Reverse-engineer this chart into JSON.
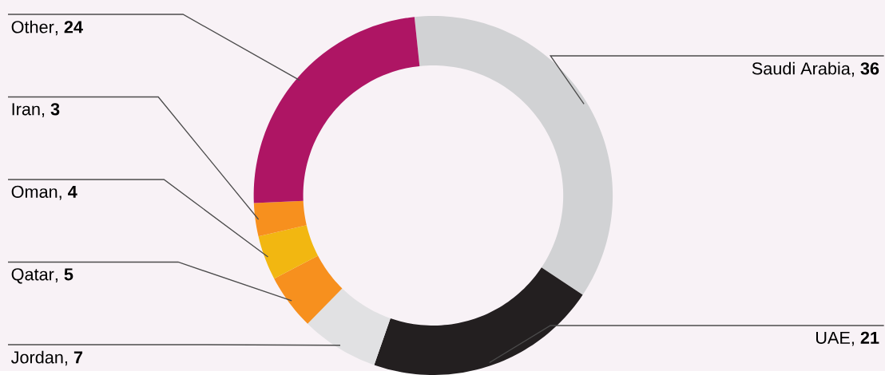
{
  "chart_data": {
    "type": "donut",
    "categories": [
      "Saudi Arabia",
      "UAE",
      "Jordan",
      "Qatar",
      "Oman",
      "Iran",
      "Other"
    ],
    "values": [
      36,
      21,
      7,
      5,
      4,
      3,
      24
    ],
    "value_labels": [
      ", **36**",
      ", **21**",
      ", **7**",
      ", **5**",
      ", **4**",
      ", **3**",
      ", **24**"
    ],
    "colors": [
      "#d1d2d4",
      "#231f20",
      "#e1e1e3",
      "#f7901e",
      "#f2b711",
      "#f7901e",
      "#ae1564"
    ]
  }
}
